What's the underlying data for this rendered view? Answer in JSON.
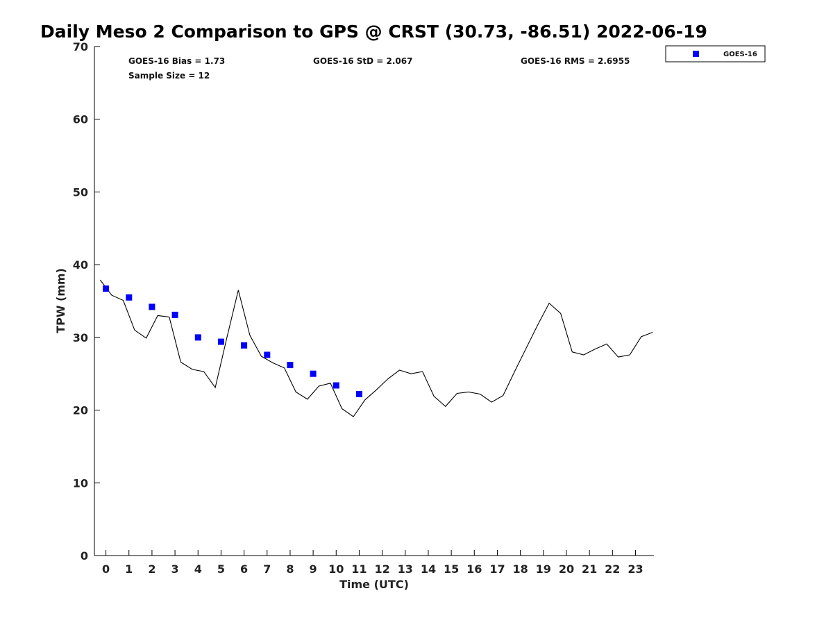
{
  "chart_data": {
    "type": "scatter",
    "title": "Daily Meso 2 Comparison to GPS @ CRST (30.73, -86.51) 2022-06-19",
    "xlabel": "Time (UTC)",
    "ylabel": "TPW (mm)",
    "xlim": [
      -0.5,
      23.8
    ],
    "ylim": [
      0,
      70
    ],
    "x_ticks": [
      "0",
      "1",
      "2",
      "3",
      "4",
      "5",
      "6",
      "7",
      "8",
      "9",
      "10",
      "11",
      "12",
      "13",
      "14",
      "15",
      "16",
      "17",
      "18",
      "19",
      "20",
      "21",
      "22",
      "23"
    ],
    "y_ticks": [
      "0",
      "10",
      "20",
      "30",
      "40",
      "50",
      "60",
      "70"
    ],
    "stats": {
      "bias": "GOES-16 Bias = 1.73",
      "std": "GOES-16 StD = 2.067",
      "rms": "GOES-16 RMS = 2.6955",
      "sample_size": "Sample Size = 12"
    },
    "legend": {
      "position": "top-right-outside",
      "label": "GOES-16"
    },
    "series": [
      {
        "name": "GOES-16",
        "kind": "points",
        "marker": "square",
        "color": "#0000ff",
        "x": [
          0,
          1,
          2,
          3,
          4,
          5,
          6,
          7,
          8,
          9,
          10,
          11
        ],
        "y": [
          36.7,
          35.5,
          34.2,
          33.1,
          30.0,
          29.4,
          28.9,
          27.6,
          26.2,
          25.0,
          23.4,
          22.2
        ]
      },
      {
        "name": "GPS",
        "kind": "line",
        "color": "#000000",
        "x": [
          -0.25,
          0.25,
          0.75,
          1.25,
          1.75,
          2.25,
          2.75,
          3.25,
          3.75,
          4.25,
          4.75,
          5.25,
          5.75,
          6.25,
          6.75,
          7.25,
          7.75,
          8.25,
          8.75,
          9.25,
          9.75,
          10.25,
          10.75,
          11.25,
          11.75,
          12.25,
          12.75,
          13.25,
          13.75,
          14.25,
          14.75,
          15.25,
          15.75,
          16.25,
          16.75,
          17.25,
          17.75,
          18.25,
          18.75,
          19.25,
          19.75,
          20.25,
          20.75,
          21.25,
          21.75,
          22.25,
          22.75,
          23.25,
          23.75
        ],
        "y": [
          37.9,
          35.8,
          35.1,
          31.0,
          29.9,
          33.0,
          32.8,
          26.6,
          25.6,
          25.3,
          23.1,
          29.9,
          36.5,
          30.3,
          27.4,
          26.5,
          25.8,
          22.5,
          21.5,
          23.3,
          23.7,
          20.2,
          19.1,
          21.4,
          22.8,
          24.3,
          25.5,
          25.0,
          25.3,
          21.9,
          20.5,
          22.3,
          22.5,
          22.2,
          21.1,
          22.0,
          25.3,
          28.5,
          31.7,
          34.7,
          33.3,
          28.0,
          27.6,
          28.4,
          29.1,
          27.3,
          27.6,
          30.1,
          30.7
        ]
      }
    ]
  }
}
